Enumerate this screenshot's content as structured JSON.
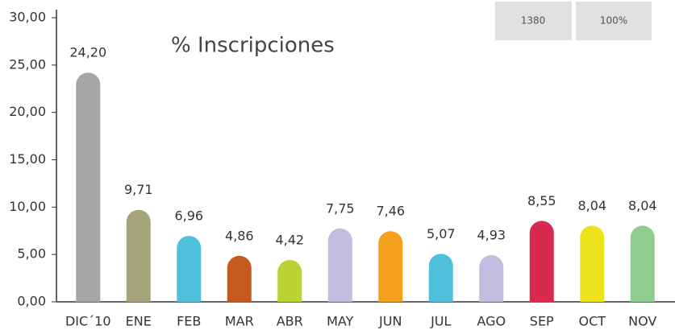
{
  "chart_data": {
    "type": "bar",
    "title": "% Inscripciones",
    "categories": [
      "DIC´10",
      "ENE",
      "FEB",
      "MAR",
      "ABR",
      "MAY",
      "JUN",
      "JUL",
      "AGO",
      "SEP",
      "OCT",
      "NOV"
    ],
    "values": [
      24.2,
      9.71,
      6.96,
      4.86,
      4.42,
      7.75,
      7.46,
      5.07,
      4.93,
      8.55,
      8.04,
      8.04
    ],
    "value_labels": [
      "24,20",
      "9,71",
      "6,96",
      "4,86",
      "4,42",
      "7,75",
      "7,46",
      "5,07",
      "4,93",
      "8,55",
      "8,04",
      "8,04"
    ],
    "colors": [
      "#a6a6a8",
      "#a5a37a",
      "#4fc0dc",
      "#c55a20",
      "#bcd232",
      "#c0bde0",
      "#f5a01d",
      "#4fc0dc",
      "#c0bde0",
      "#d9294e",
      "#ede21b",
      "#8fcc8f"
    ],
    "ylim": [
      0,
      30
    ],
    "yticks": [
      {
        "value": 0,
        "label": "0,00"
      },
      {
        "value": 5,
        "label": "5,00"
      },
      {
        "value": 10,
        "label": "10,00"
      },
      {
        "value": 15,
        "label": "15,00"
      },
      {
        "value": 20,
        "label": "20,00"
      },
      {
        "value": 25,
        "label": "25,00"
      },
      {
        "value": 30,
        "label": "30,00"
      }
    ],
    "annotations": [
      "1380",
      "100%"
    ]
  }
}
